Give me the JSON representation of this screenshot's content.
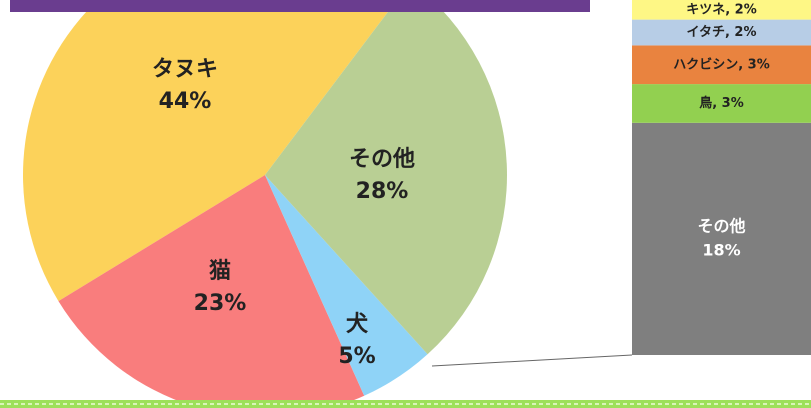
{
  "chart_data": [
    {
      "type": "pie",
      "categories": [
        "タヌキ",
        "猫",
        "犬",
        "その他"
      ],
      "values": [
        44,
        23,
        5,
        28
      ],
      "value_labels": [
        "44%",
        "23%",
        "5%",
        "28%"
      ],
      "colors": [
        "#fcd25a",
        "#f97d7d",
        "#8fd3f7",
        "#b9cf94"
      ]
    },
    {
      "type": "stacked-bar",
      "categories": [
        "キツネ",
        "イタチ",
        "ハクビシン",
        "鳥",
        "その他"
      ],
      "values": [
        2,
        2,
        3,
        3,
        18
      ],
      "value_labels": [
        "キツネ, 2%",
        "イタチ, 2%",
        "ハクビシン, 3%",
        "鳥, 3%",
        "18%"
      ],
      "colors": [
        "#fef785",
        "#b7cde6",
        "#e9833f",
        "#92d050",
        "#7f7f7f"
      ]
    }
  ]
}
